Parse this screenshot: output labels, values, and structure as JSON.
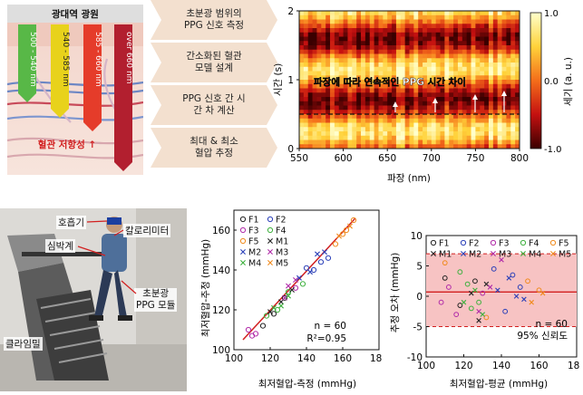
{
  "illustration": {
    "title": "광대역 광원",
    "wavelength_bands": [
      {
        "label": "500 - 540 nm",
        "color": "#58b847"
      },
      {
        "label": "540 - 585 nm",
        "color": "#e8d21b"
      },
      {
        "label": "585 - 660 nm",
        "color": "#e53c2a"
      },
      {
        "label": "over 660 nm",
        "color": "#b21f2f"
      }
    ],
    "caption": "혈관 저항성 ↑"
  },
  "steps": [
    {
      "label_line1": "초분광 범위의",
      "label_line2": "PPG 신호 측정"
    },
    {
      "label_line1": "간소화된 혈관",
      "label_line2": "모델 설계"
    },
    {
      "label_line1": "PPG 신호 간 시",
      "label_line2": "간 차 계산"
    },
    {
      "label_line1": "최대 & 최소",
      "label_line2": "혈압 추정"
    }
  ],
  "heatmap": {
    "annotation": "파장에 따라 연속적인 PPG 시간 차이",
    "xlabel": "파장 (nm)",
    "ylabel": "시간 (s)",
    "x_ticks": [
      "550",
      "600",
      "650",
      "700",
      "750",
      "800"
    ],
    "y_ticks": [
      "0",
      "1",
      "2"
    ],
    "colorbar_label": "세기 (a. u.)",
    "colorbar_ticks": [
      "1.0",
      "0.0",
      "-1.0"
    ]
  },
  "photo": {
    "labels": {
      "respirator": "호흡기",
      "calorimeter": "칼로리미터",
      "heart_rate_monitor": "심박계",
      "ppg_module": "초분광\nPPG 모듈",
      "climbing_mill": "클라임밀"
    }
  },
  "chart_data": [
    {
      "type": "scatter",
      "xlabel": "최저혈압-측정 (mmHg)",
      "ylabel": "최저혈압-추정 (mmHg)",
      "xlim": [
        100,
        180
      ],
      "ylim": [
        100,
        170
      ],
      "x_ticks": [
        "100",
        "120",
        "140",
        "160",
        "180"
      ],
      "y_ticks": [
        "100",
        "120",
        "140",
        "160"
      ],
      "stats": [
        "n = 60",
        "R²=0.95"
      ],
      "legend": [
        {
          "name": "F1",
          "marker": "o",
          "color": "#222222"
        },
        {
          "name": "F2",
          "marker": "o",
          "color": "#2a3fb8"
        },
        {
          "name": "F3",
          "marker": "o",
          "color": "#b02aa8"
        },
        {
          "name": "F4",
          "marker": "o",
          "color": "#3db03d"
        },
        {
          "name": "F5",
          "marker": "o",
          "color": "#f08a1c"
        },
        {
          "name": "M1",
          "marker": "x",
          "color": "#222222"
        },
        {
          "name": "M2",
          "marker": "x",
          "color": "#2a3fb8"
        },
        {
          "name": "M3",
          "marker": "x",
          "color": "#b02aa8"
        },
        {
          "name": "M4",
          "marker": "x",
          "color": "#3db03d"
        },
        {
          "name": "M5",
          "marker": "x",
          "color": "#f08a1c"
        }
      ],
      "fit_line": {
        "from": [
          105,
          105
        ],
        "to": [
          167,
          166
        ],
        "color": "#d21f1f"
      },
      "points": [
        {
          "s": "F1",
          "x": 116,
          "y": 112
        },
        {
          "s": "F1",
          "x": 122,
          "y": 118
        },
        {
          "s": "F1",
          "x": 128,
          "y": 126
        },
        {
          "s": "F2",
          "x": 140,
          "y": 141
        },
        {
          "s": "F2",
          "x": 144,
          "y": 140
        },
        {
          "s": "F2",
          "x": 148,
          "y": 144
        },
        {
          "s": "F2",
          "x": 152,
          "y": 146
        },
        {
          "s": "F3",
          "x": 108,
          "y": 110
        },
        {
          "s": "F3",
          "x": 110,
          "y": 107
        },
        {
          "s": "F3",
          "x": 112,
          "y": 108
        },
        {
          "s": "F3",
          "x": 134,
          "y": 131
        },
        {
          "s": "F4",
          "x": 118,
          "y": 117
        },
        {
          "s": "F4",
          "x": 124,
          "y": 120
        },
        {
          "s": "F4",
          "x": 130,
          "y": 129
        },
        {
          "s": "F4",
          "x": 138,
          "y": 133
        },
        {
          "s": "F5",
          "x": 156,
          "y": 153
        },
        {
          "s": "F5",
          "x": 160,
          "y": 158
        },
        {
          "s": "F5",
          "x": 162,
          "y": 160
        },
        {
          "s": "F5",
          "x": 166,
          "y": 165
        },
        {
          "s": "M1",
          "x": 120,
          "y": 119
        },
        {
          "s": "M1",
          "x": 126,
          "y": 124
        },
        {
          "s": "M1",
          "x": 132,
          "y": 130
        },
        {
          "s": "M2",
          "x": 136,
          "y": 136
        },
        {
          "s": "M2",
          "x": 142,
          "y": 139
        },
        {
          "s": "M2",
          "x": 146,
          "y": 148
        },
        {
          "s": "M2",
          "x": 150,
          "y": 149
        },
        {
          "s": "M3",
          "x": 128,
          "y": 126
        },
        {
          "s": "M3",
          "x": 130,
          "y": 132
        },
        {
          "s": "M3",
          "x": 134,
          "y": 135
        },
        {
          "s": "M4",
          "x": 122,
          "y": 121
        },
        {
          "s": "M4",
          "x": 126,
          "y": 122
        },
        {
          "s": "M4",
          "x": 130,
          "y": 127
        },
        {
          "s": "M5",
          "x": 158,
          "y": 157
        },
        {
          "s": "M5",
          "x": 164,
          "y": 162
        }
      ]
    },
    {
      "type": "scatter",
      "xlabel": "최저혈압-평균 (mmHg)",
      "ylabel": "추정 오차 (mmHg)",
      "xlim": [
        100,
        180
      ],
      "ylim": [
        -10,
        10
      ],
      "x_ticks": [
        "100",
        "120",
        "140",
        "160",
        "180"
      ],
      "y_ticks": [
        "-10",
        "-5",
        "0",
        "5",
        "10"
      ],
      "band": {
        "upper": 7,
        "lower": -5,
        "color": "#f7c3c3"
      },
      "mean_line": {
        "y": 0.7,
        "color": "#d21f1f"
      },
      "limit_line_color": "#d21f1f",
      "stats": [
        "n = 60",
        "95% 신뢰도"
      ],
      "legend": [
        {
          "name": "F1",
          "marker": "o",
          "color": "#222222"
        },
        {
          "name": "F2",
          "marker": "o",
          "color": "#2a3fb8"
        },
        {
          "name": "F3",
          "marker": "o",
          "color": "#b02aa8"
        },
        {
          "name": "F4",
          "marker": "o",
          "color": "#3db03d"
        },
        {
          "name": "F5",
          "marker": "o",
          "color": "#f08a1c"
        },
        {
          "name": "M1",
          "marker": "x",
          "color": "#222222"
        },
        {
          "name": "M2",
          "marker": "x",
          "color": "#2a3fb8"
        },
        {
          "name": "M3",
          "marker": "x",
          "color": "#b02aa8"
        },
        {
          "name": "M4",
          "marker": "x",
          "color": "#3db03d"
        },
        {
          "name": "M5",
          "marker": "x",
          "color": "#f08a1c"
        }
      ],
      "points": [
        {
          "s": "F1",
          "x": 110,
          "y": 3.0
        },
        {
          "s": "F1",
          "x": 118,
          "y": -1.5
        },
        {
          "s": "F1",
          "x": 126,
          "y": 2.5
        },
        {
          "s": "F2",
          "x": 136,
          "y": 4.5
        },
        {
          "s": "F2",
          "x": 142,
          "y": -2.5
        },
        {
          "s": "F2",
          "x": 150,
          "y": 1.5
        },
        {
          "s": "F2",
          "x": 146,
          "y": 3.5
        },
        {
          "s": "F3",
          "x": 108,
          "y": -1.0
        },
        {
          "s": "F3",
          "x": 112,
          "y": 1.5
        },
        {
          "s": "F3",
          "x": 116,
          "y": -3.0
        },
        {
          "s": "F3",
          "x": 130,
          "y": 0.5
        },
        {
          "s": "F4",
          "x": 118,
          "y": 4.0
        },
        {
          "s": "F4",
          "x": 124,
          "y": -2.0
        },
        {
          "s": "F4",
          "x": 122,
          "y": 2.0
        },
        {
          "s": "F4",
          "x": 128,
          "y": -1.0
        },
        {
          "s": "F5",
          "x": 154,
          "y": 2.5
        },
        {
          "s": "F5",
          "x": 160,
          "y": 1.0
        },
        {
          "s": "F5",
          "x": 110,
          "y": 5.5
        },
        {
          "s": "F5",
          "x": 132,
          "y": -3.5
        },
        {
          "s": "M1",
          "x": 124,
          "y": 0.5
        },
        {
          "s": "M1",
          "x": 128,
          "y": -4.0
        },
        {
          "s": "M1",
          "x": 132,
          "y": 2.0
        },
        {
          "s": "M2",
          "x": 138,
          "y": 1.0
        },
        {
          "s": "M2",
          "x": 144,
          "y": 3.0
        },
        {
          "s": "M2",
          "x": 152,
          "y": -0.5
        },
        {
          "s": "M2",
          "x": 148,
          "y": 0.0
        },
        {
          "s": "M3",
          "x": 128,
          "y": -2.5
        },
        {
          "s": "M3",
          "x": 134,
          "y": 1.5
        },
        {
          "s": "M3",
          "x": 140,
          "y": 6.0
        },
        {
          "s": "M4",
          "x": 120,
          "y": -1.0
        },
        {
          "s": "M4",
          "x": 126,
          "y": 1.0
        },
        {
          "s": "M4",
          "x": 130,
          "y": -3.0
        },
        {
          "s": "M5",
          "x": 156,
          "y": -1.0
        },
        {
          "s": "M5",
          "x": 162,
          "y": 0.5
        }
      ]
    }
  ]
}
